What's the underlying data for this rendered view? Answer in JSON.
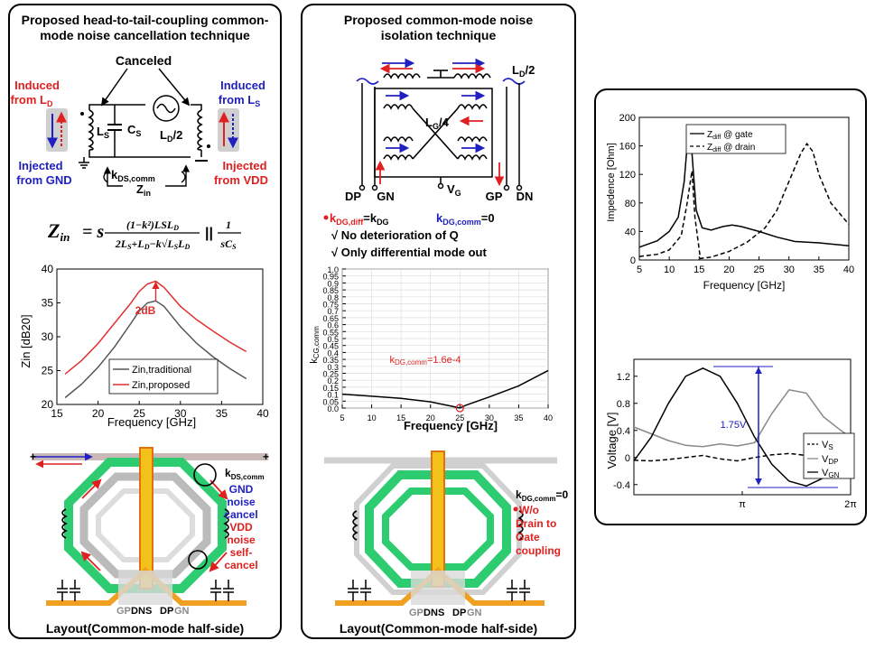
{
  "left": {
    "title_line1": "Proposed head-to-tail-coupling common-",
    "title_line2": "mode noise cancellation technique",
    "circuit": {
      "canceled": "Canceled",
      "induced_ld": "Induced",
      "induced_ld_from": "from L",
      "ld_sub": "D",
      "induced_ls": "Induced",
      "induced_ls_from": "from L",
      "ls_sub": "S",
      "ls_label": "L",
      "ls_label_sub": "S",
      "cs_label": "C",
      "cs_label_sub": "S",
      "ld2_label": "L",
      "ld2_label_sub": "D",
      "ld2_suffix": "/2",
      "injected_gnd1": "Injected",
      "injected_gnd2": "from GND",
      "injected_vdd1": "Injected",
      "injected_vdd2": "from VDD",
      "k_label": "k",
      "k_sub": "DS,comm",
      "zin_label": "Z",
      "zin_sub": "in"
    },
    "equation": {
      "lhs": "Z",
      "lhs_sub": "in",
      "eq": "= s",
      "num": "(1−k²)L",
      "num_tail": "SL",
      "num_tail2": "D",
      "den": "2L",
      "den_s": "S",
      "den_mid": "+L",
      "den_d": "D",
      "den_tail": "−k√L",
      "den_sl": "S",
      "den_l": "L",
      "den_ld": "D",
      "par": "||",
      "num2": "1",
      "den2": "sC",
      "den2_sub": "S"
    },
    "chart": {
      "ylabel": "Zin [dB20]",
      "xlabel": "Frequency [GHz]",
      "annotation": "2dB",
      "legend_traditional": "Zin,traditional",
      "legend_proposed": "Zin,proposed"
    },
    "layout_labels": {
      "k_label": "k",
      "k_sub": "DS,comm",
      "gnd1": "GND",
      "gnd2": "noise",
      "gnd3": "cancel",
      "vdd1": "VDD",
      "vdd2": "noise",
      "vdd3": "self-",
      "vdd4": "cancel",
      "pins": [
        "GP",
        "DN",
        "S",
        "DP",
        "GN"
      ]
    },
    "caption": "Layout(Common-mode half-side)"
  },
  "middle": {
    "title_line1": "Proposed common-mode noise",
    "title_line2": "isolation technique",
    "circuit": {
      "ld2": "L",
      "ld2_sub": "D",
      "ld2_suffix": "/2",
      "lg4": "L",
      "lg4_sub": "G",
      "lg4_suffix": "/4",
      "vg": "V",
      "vg_sub": "G",
      "dp": "DP",
      "gn": "GN",
      "gp": "GP",
      "dn": "DN"
    },
    "notes": {
      "kdiff": "k",
      "kdiff_sub": "DG,diff",
      "kdiff_eq": "=k",
      "kdiff_eq_sub": "DG",
      "kcomm": "k",
      "kcomm_sub": "DG,comm",
      "kcomm_eq": "=0",
      "note1": "√ No deterioration of Q",
      "note2": "√ Only differential mode out"
    },
    "chart": {
      "ylabel": "k",
      "ylabel_sub": "CG,comm",
      "xlabel": "Frequency [GHz]",
      "annotation": "k",
      "annotation_sub": "DG,comm",
      "annotation_val": "=1.6e-4"
    },
    "layout_labels": {
      "k_label": "k",
      "k_sub": "DG,comm",
      "k_val": "=0",
      "wo1": "W/o",
      "wo2": "Drain to",
      "wo3": "Gate",
      "wo4": "coupling",
      "pins": [
        "GP",
        "DN",
        "S",
        "DP",
        "GN"
      ]
    },
    "caption": "Layout(Common-mode half-side)"
  },
  "right": {
    "chart_top": {
      "ylabel": "Impedence [Ohm]",
      "xlabel": "Frequency [GHz]",
      "legend_gate": "Z",
      "legend_gate_sub": "diff",
      "legend_gate_tail": " @ gate",
      "legend_drain": "Z",
      "legend_drain_sub": "diff",
      "legend_drain_tail": " @ drain"
    },
    "chart_bottom": {
      "ylabel": "Voltage [V]",
      "annotation": "1.75V",
      "legend_vs": "V",
      "legend_vs_sub": "S",
      "legend_vdp": "V",
      "legend_vdp_sub": "DP",
      "legend_vgn": "V",
      "legend_vgn_sub": "GN"
    }
  },
  "chart_data": [
    {
      "type": "line",
      "x_ticks": [
        15,
        20,
        25,
        30,
        35,
        40
      ],
      "y_ticks": [
        20,
        25,
        30,
        35,
        40
      ],
      "xlim": [
        15,
        40
      ],
      "ylim": [
        20,
        40
      ],
      "xlabel": "Frequency [GHz]",
      "ylabel": "Zin [dB20]",
      "series": [
        {
          "name": "Zin,traditional",
          "color": "#555555",
          "x": [
            16,
            18,
            20,
            22,
            24,
            25,
            26,
            27,
            28,
            30,
            32,
            34,
            36,
            38
          ],
          "y": [
            21.0,
            23.0,
            25.5,
            28.5,
            32.0,
            33.8,
            35.0,
            35.3,
            34.5,
            31.5,
            29.0,
            27.0,
            25.3,
            23.8
          ]
        },
        {
          "name": "Zin,proposed",
          "color": "#e03030",
          "x": [
            16,
            18,
            20,
            22,
            24,
            25,
            26,
            27,
            28,
            30,
            32,
            34,
            36,
            38
          ],
          "y": [
            24.5,
            26.5,
            29.0,
            32.0,
            35.0,
            36.7,
            37.8,
            38.2,
            37.3,
            34.5,
            32.5,
            30.8,
            29.2,
            27.8
          ]
        }
      ],
      "annotations": [
        "2dB"
      ],
      "legend": "bottom-right"
    },
    {
      "type": "line",
      "x_ticks": [
        5,
        10,
        15,
        20,
        25,
        30,
        35,
        40
      ],
      "y_ticks": [
        0.0,
        0.05,
        0.1,
        0.15,
        0.2,
        0.25,
        0.3,
        0.35,
        0.4,
        0.45,
        0.5,
        0.55,
        0.6,
        0.65,
        0.7,
        0.75,
        0.8,
        0.85,
        0.9,
        0.95,
        1.0
      ],
      "y_tick_labels": [
        "0.0",
        "0.05",
        "0.1",
        "0.15",
        "0.2",
        "0.25",
        "0.3",
        "0.35",
        "0.4",
        "0.45",
        "0.5",
        "0.55",
        "0.6",
        "0.65",
        "0.7",
        "0.75",
        "0.8",
        "0.85",
        "0.9",
        "0.95",
        "1.0"
      ],
      "xlim": [
        5,
        40
      ],
      "ylim": [
        0,
        1
      ],
      "xlabel": "Frequency [GHz]",
      "series": [
        {
          "name": "kCG,comm",
          "x": [
            5,
            10,
            15,
            20,
            24,
            25,
            26,
            30,
            35,
            40
          ],
          "y": [
            0.1,
            0.085,
            0.07,
            0.045,
            0.01,
            0.0002,
            0.02,
            0.08,
            0.16,
            0.27
          ]
        }
      ],
      "annotations": [
        "kDG,comm=1.6e-4"
      ],
      "grid": true
    },
    {
      "type": "line",
      "x_ticks": [
        5,
        10,
        15,
        20,
        25,
        30,
        35,
        40
      ],
      "y_ticks": [
        0,
        40,
        80,
        120,
        160,
        200
      ],
      "xlim": [
        5,
        40
      ],
      "ylim": [
        0,
        200
      ],
      "xlabel": "Frequency [GHz]",
      "ylabel": "Impedence [Ohm]",
      "series": [
        {
          "name": "Zdiff @ gate",
          "style": "solid",
          "x": [
            5,
            8,
            10,
            11.5,
            12.5,
            13.2,
            13.8,
            14.5,
            15.5,
            17,
            19,
            20.5,
            22,
            25,
            28,
            31,
            35,
            40
          ],
          "y": [
            18,
            27,
            40,
            60,
            110,
            183,
            150,
            70,
            45,
            42,
            47,
            49,
            47,
            40,
            32,
            26,
            24,
            20
          ]
        },
        {
          "name": "Zdiff @ drain",
          "style": "dashed",
          "x": [
            5,
            8,
            10,
            12,
            13,
            13.8,
            14.3,
            15.2,
            17,
            20,
            23,
            26,
            28,
            30,
            32,
            33,
            34,
            35,
            37,
            40
          ],
          "y": [
            5,
            8,
            14,
            34,
            80,
            125,
            60,
            2,
            4,
            12,
            25,
            45,
            70,
            110,
            150,
            163,
            152,
            120,
            80,
            50
          ]
        }
      ],
      "legend": "top-left"
    },
    {
      "type": "line",
      "x_ticks": [
        "π",
        "2π"
      ],
      "y_ticks": [
        -0.4,
        0.0,
        0.4,
        0.8,
        1.2
      ],
      "xlim": [
        0,
        6.283
      ],
      "ylim": [
        -0.55,
        1.45
      ],
      "ylabel": "Voltage [V]",
      "series": [
        {
          "name": "VS",
          "style": "dashed",
          "x": [
            0,
            0.5,
            1,
            1.5,
            2,
            2.5,
            3,
            3.5,
            4,
            4.5,
            5,
            5.5,
            6,
            6.283
          ],
          "y": [
            -0.04,
            -0.05,
            -0.03,
            0.0,
            0.03,
            -0.02,
            -0.05,
            0.0,
            0.04,
            0.06,
            0.03,
            0.0,
            -0.05,
            -0.04
          ]
        },
        {
          "name": "VDP",
          "style": "solid",
          "color": "#888888",
          "x": [
            0,
            0.5,
            1,
            1.5,
            2,
            2.5,
            3,
            3.5,
            4,
            4.5,
            5,
            5.5,
            6,
            6.283
          ],
          "y": [
            0.45,
            0.35,
            0.25,
            0.18,
            0.16,
            0.2,
            0.17,
            0.22,
            0.65,
            1.0,
            0.95,
            0.6,
            0.4,
            0.3
          ]
        },
        {
          "name": "VGN",
          "style": "solid",
          "x": [
            0,
            0.5,
            1,
            1.5,
            2,
            2.5,
            3,
            3.5,
            4,
            4.5,
            5,
            5.5,
            6,
            6.283
          ],
          "y": [
            -0.05,
            0.3,
            0.8,
            1.2,
            1.32,
            1.2,
            0.8,
            0.3,
            -0.1,
            -0.35,
            -0.42,
            -0.3,
            0.0,
            0.1
          ]
        }
      ],
      "annotations": [
        "1.75V"
      ],
      "legend": "bottom-right"
    }
  ]
}
